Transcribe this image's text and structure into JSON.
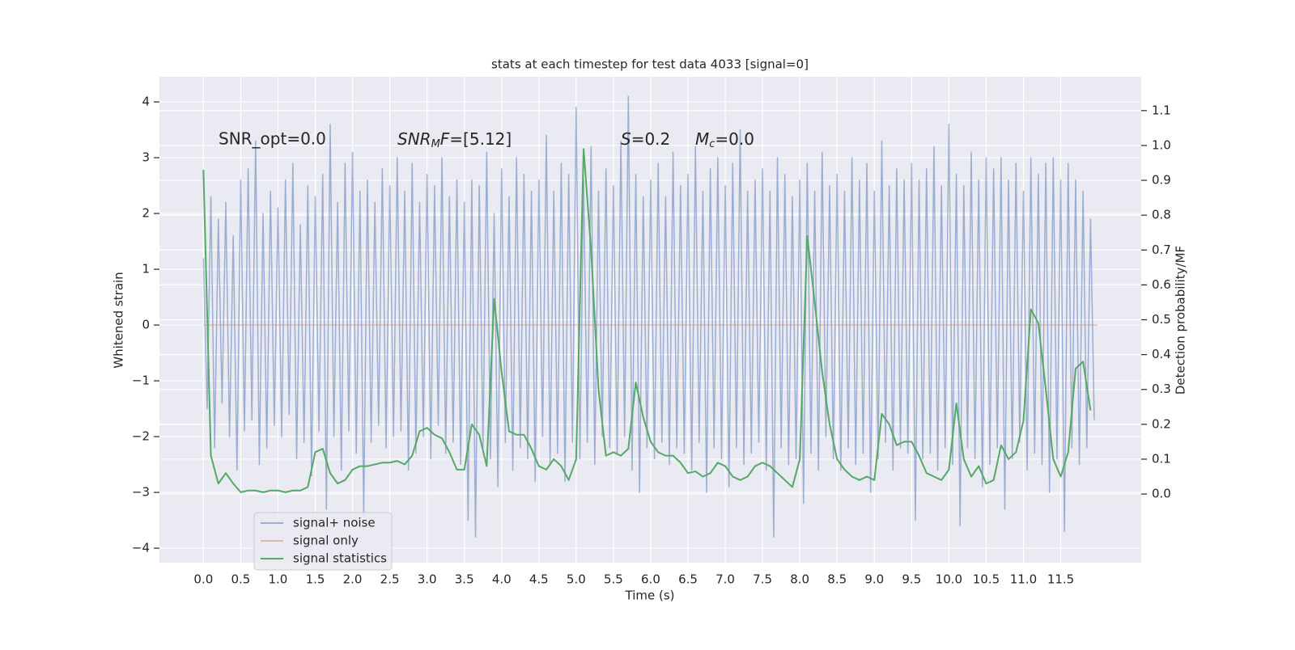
{
  "chart_data": {
    "type": "line",
    "title": "stats at each timestep for test data 4033 [signal=0]",
    "x_label": "Time (s)",
    "y_label": "Whitened strain",
    "y2_label": "Detection probability/MF",
    "xlim": [
      -0.59,
      12.58
    ],
    "ylim": [
      -4.26,
      4.45
    ],
    "y2lim": [
      -0.197,
      1.197
    ],
    "xticks": [
      {
        "value": 0,
        "label": "0.0"
      },
      0.5,
      {
        "value": 1,
        "label": "1.0"
      },
      1.5,
      {
        "value": 2,
        "label": "2.0"
      },
      2.5,
      {
        "value": 3,
        "label": "3.0"
      },
      3.5,
      {
        "value": 4,
        "label": "4.0"
      },
      4.5,
      {
        "value": 5,
        "label": "5.0"
      },
      5.5,
      {
        "value": 6,
        "label": "6.0"
      },
      6.5,
      {
        "value": 7,
        "label": "7.0"
      },
      7.5,
      {
        "value": 8,
        "label": "8.0"
      },
      8.5,
      {
        "value": 9,
        "label": "9.0"
      },
      9.5,
      {
        "value": 10,
        "label": "10.0"
      },
      10.5,
      {
        "value": 11,
        "label": "11.0"
      },
      11.5
    ],
    "yticks": [
      {
        "value": -4,
        "label": "−4"
      },
      {
        "value": -3,
        "label": "−3"
      },
      {
        "value": -2,
        "label": "−2"
      },
      {
        "value": -1,
        "label": "−1"
      },
      0,
      1,
      2,
      3,
      4
    ],
    "y2ticks": [
      {
        "value": 0,
        "label": "0.0"
      },
      0.1,
      0.2,
      0.3,
      0.4,
      0.5,
      0.6,
      0.7,
      0.8,
      0.9,
      {
        "value": 1,
        "label": "1.0"
      },
      1.1
    ],
    "grid": true,
    "legend": "lower left",
    "annotations": [
      {
        "text": "SNR_opt=0.0"
      },
      {
        "parts": [
          "SNR",
          "M",
          "F",
          "=[5.12]"
        ]
      },
      {
        "parts": [
          "S",
          "=0.2"
        ]
      },
      {
        "parts": [
          "M",
          "c",
          "=0.0"
        ]
      }
    ],
    "series": [
      {
        "name": "signal+ noise",
        "color": "#4c72b0",
        "x": [
          0,
          0.05,
          0.1,
          0.15,
          0.2,
          0.25,
          0.3,
          0.35,
          0.4,
          0.45,
          0.5,
          0.55,
          0.6,
          0.65,
          0.7,
          0.75,
          0.8,
          0.85,
          0.9,
          0.95,
          1,
          1.05,
          1.1,
          1.15,
          1.2,
          1.25,
          1.3,
          1.35,
          1.4,
          1.45,
          1.5,
          1.55,
          1.6,
          1.65,
          1.7,
          1.75,
          1.8,
          1.85,
          1.9,
          1.95,
          2,
          2.05,
          2.1,
          2.15,
          2.2,
          2.25,
          2.3,
          2.35,
          2.4,
          2.45,
          2.5,
          2.55,
          2.6,
          2.65,
          2.7,
          2.75,
          2.8,
          2.85,
          2.9,
          2.95,
          3,
          3.05,
          3.1,
          3.15,
          3.2,
          3.25,
          3.3,
          3.35,
          3.4,
          3.45,
          3.5,
          3.55,
          3.6,
          3.65,
          3.7,
          3.75,
          3.8,
          3.85,
          3.9,
          3.95,
          4,
          4.05,
          4.1,
          4.15,
          4.2,
          4.25,
          4.3,
          4.35,
          4.4,
          4.45,
          4.5,
          4.55,
          4.6,
          4.65,
          4.7,
          4.75,
          4.8,
          4.85,
          4.9,
          4.95,
          5,
          5.05,
          5.1,
          5.15,
          5.2,
          5.25,
          5.3,
          5.35,
          5.4,
          5.45,
          5.5,
          5.55,
          5.6,
          5.65,
          5.7,
          5.75,
          5.8,
          5.85,
          5.9,
          5.95,
          6,
          6.05,
          6.1,
          6.15,
          6.2,
          6.25,
          6.3,
          6.35,
          6.4,
          6.45,
          6.5,
          6.55,
          6.6,
          6.65,
          6.7,
          6.75,
          6.8,
          6.85,
          6.9,
          6.95,
          7,
          7.05,
          7.1,
          7.15,
          7.2,
          7.25,
          7.3,
          7.35,
          7.4,
          7.45,
          7.5,
          7.55,
          7.6,
          7.65,
          7.7,
          7.75,
          7.8,
          7.85,
          7.9,
          7.95,
          8,
          8.05,
          8.1,
          8.15,
          8.2,
          8.25,
          8.3,
          8.35,
          8.4,
          8.45,
          8.5,
          8.55,
          8.6,
          8.65,
          8.7,
          8.75,
          8.8,
          8.85,
          8.9,
          8.95,
          9,
          9.05,
          9.1,
          9.15,
          9.2,
          9.25,
          9.3,
          9.35,
          9.4,
          9.45,
          9.5,
          9.55,
          9.6,
          9.65,
          9.7,
          9.75,
          9.8,
          9.85,
          9.9,
          9.95,
          10,
          10.05,
          10.1,
          10.15,
          10.2,
          10.25,
          10.3,
          10.35,
          10.4,
          10.45,
          10.5,
          10.55,
          10.6,
          10.65,
          10.7,
          10.75,
          10.8,
          10.85,
          10.9,
          10.95,
          11,
          11.05,
          11.1,
          11.15,
          11.2,
          11.25,
          11.3,
          11.35,
          11.4,
          11.45,
          11.5,
          11.55,
          11.6,
          11.65,
          11.7,
          11.75,
          11.8,
          11.85,
          11.9,
          11.95
        ],
        "values": [
          1.2,
          -1.5,
          2.3,
          -2.2,
          1.9,
          -1.4,
          2.2,
          -2.0,
          1.6,
          -2.6,
          2.6,
          -1.9,
          2.8,
          -1.7,
          3.3,
          -2.5,
          2.0,
          -2.2,
          2.4,
          -1.8,
          2.1,
          -2.0,
          2.6,
          -1.6,
          2.9,
          -2.4,
          1.8,
          -2.1,
          2.5,
          -2.7,
          2.3,
          -1.9,
          2.7,
          -3.3,
          3.6,
          -2.0,
          2.2,
          -2.6,
          2.9,
          -1.9,
          3.1,
          -2.3,
          2.4,
          -3.4,
          2.6,
          -2.1,
          2.2,
          -1.8,
          2.8,
          -2.2,
          2.5,
          -2.0,
          3.0,
          -1.9,
          2.4,
          -2.6,
          2.9,
          -2.3,
          2.2,
          -2.0,
          2.7,
          -2.4,
          2.5,
          -1.8,
          3.0,
          -2.3,
          2.3,
          -2.1,
          2.6,
          -2.5,
          2.2,
          -3.5,
          2.6,
          -3.8,
          2.5,
          -2.2,
          3.1,
          -2.4,
          2.0,
          -2.9,
          2.8,
          -2.1,
          2.3,
          -2.6,
          3.0,
          -2.2,
          2.7,
          -2.4,
          2.4,
          -2.8,
          2.6,
          -2.0,
          3.4,
          -2.5,
          2.4,
          -2.3,
          2.9,
          -2.8,
          2.7,
          -2.1,
          3.9,
          -2.4,
          2.6,
          -2.1,
          3.2,
          -2.5,
          2.4,
          -2.0,
          2.8,
          -2.2,
          2.5,
          -2.3,
          3.3,
          -2.0,
          4.1,
          -2.6,
          2.7,
          -3.0,
          2.3,
          -2.2,
          2.6,
          -2.4,
          2.9,
          -2.1,
          2.3,
          -2.5,
          3.1,
          -2.2,
          2.5,
          -2.3,
          2.7,
          -2.6,
          3.2,
          -2.1,
          2.4,
          -3.0,
          2.8,
          -2.2,
          3.0,
          -2.4,
          2.5,
          -2.9,
          2.9,
          -2.2,
          3.5,
          -2.5,
          2.4,
          -2.3,
          2.6,
          -2.1,
          2.8,
          -2.6,
          2.4,
          -3.8,
          3.0,
          -2.2,
          2.7,
          -2.5,
          2.3,
          -2.4,
          2.6,
          -3.2,
          2.9,
          -2.3,
          2.4,
          -2.6,
          3.1,
          -2.0,
          2.5,
          -2.4,
          2.7,
          -2.6,
          2.4,
          -2.2,
          3.0,
          -2.5,
          2.6,
          -2.3,
          2.9,
          -3.0,
          2.4,
          -2.4,
          3.3,
          -2.1,
          2.5,
          -2.6,
          2.8,
          -2.2,
          2.6,
          -2.3,
          2.9,
          -3.5,
          2.6,
          -2.4,
          2.8,
          -2.3,
          3.2,
          -2.6,
          2.5,
          -2.2,
          3.6,
          -2.5,
          2.7,
          -3.6,
          2.5,
          -2.2,
          3.1,
          -2.4,
          2.6,
          -2.9,
          3.0,
          -2.5,
          2.8,
          -2.2,
          3.0,
          -3.3,
          2.6,
          -2.4,
          2.9,
          -2.1,
          2.4,
          -2.6,
          3.0,
          -2.3,
          2.7,
          -2.5,
          2.9,
          -3.0,
          3.0,
          -2.4,
          2.6,
          -3.7,
          2.9,
          -2.2,
          2.6,
          -2.5,
          2.4,
          -2.2,
          1.9,
          -1.7
        ]
      },
      {
        "name": "signal only",
        "color": "#dd8452",
        "x": [
          0,
          11.99
        ],
        "values": [
          0,
          0
        ]
      },
      {
        "name": "signal statistics",
        "color": "#55a868",
        "axis": "y2",
        "x": [
          0,
          0.1,
          0.2,
          0.3,
          0.4,
          0.5,
          0.6,
          0.7,
          0.8,
          0.9,
          1,
          1.1,
          1.2,
          1.3,
          1.4,
          1.5,
          1.6,
          1.7,
          1.8,
          1.9,
          2,
          2.1,
          2.2,
          2.3,
          2.4,
          2.5,
          2.6,
          2.7,
          2.8,
          2.9,
          3,
          3.1,
          3.2,
          3.3,
          3.4,
          3.5,
          3.6,
          3.7,
          3.8,
          3.9,
          4,
          4.1,
          4.2,
          4.3,
          4.4,
          4.5,
          4.6,
          4.7,
          4.8,
          4.9,
          5,
          5.1,
          5.2,
          5.3,
          5.4,
          5.5,
          5.6,
          5.7,
          5.8,
          5.9,
          6,
          6.1,
          6.2,
          6.3,
          6.4,
          6.5,
          6.6,
          6.7,
          6.8,
          6.9,
          7,
          7.1,
          7.2,
          7.3,
          7.4,
          7.5,
          7.6,
          7.7,
          7.8,
          7.9,
          8,
          8.1,
          8.2,
          8.3,
          8.4,
          8.5,
          8.6,
          8.7,
          8.8,
          8.9,
          9,
          9.1,
          9.2,
          9.3,
          9.4,
          9.5,
          9.6,
          9.7,
          9.8,
          9.9,
          10,
          10.1,
          10.2,
          10.3,
          10.4,
          10.5,
          10.6,
          10.7,
          10.8,
          10.9,
          11,
          11.1,
          11.2,
          11.3,
          11.4,
          11.5,
          11.6,
          11.7,
          11.8,
          11.9
        ],
        "values": [
          0.93,
          0.11,
          0.03,
          0.06,
          0.03,
          0.005,
          0.01,
          0.01,
          0.005,
          0.01,
          0.01,
          0.005,
          0.01,
          0.01,
          0.02,
          0.12,
          0.13,
          0.06,
          0.03,
          0.04,
          0.07,
          0.08,
          0.08,
          0.085,
          0.09,
          0.09,
          0.095,
          0.085,
          0.11,
          0.18,
          0.19,
          0.17,
          0.16,
          0.12,
          0.07,
          0.07,
          0.2,
          0.17,
          0.08,
          0.56,
          0.35,
          0.18,
          0.17,
          0.17,
          0.13,
          0.08,
          0.07,
          0.1,
          0.08,
          0.04,
          0.1,
          0.99,
          0.7,
          0.3,
          0.11,
          0.12,
          0.11,
          0.13,
          0.32,
          0.22,
          0.15,
          0.12,
          0.11,
          0.11,
          0.09,
          0.06,
          0.065,
          0.05,
          0.06,
          0.09,
          0.08,
          0.05,
          0.04,
          0.05,
          0.08,
          0.09,
          0.08,
          0.06,
          0.04,
          0.02,
          0.1,
          0.74,
          0.55,
          0.35,
          0.2,
          0.1,
          0.07,
          0.05,
          0.04,
          0.05,
          0.04,
          0.23,
          0.2,
          0.14,
          0.15,
          0.15,
          0.11,
          0.06,
          0.05,
          0.04,
          0.07,
          0.26,
          0.1,
          0.05,
          0.08,
          0.03,
          0.04,
          0.14,
          0.1,
          0.12,
          0.21,
          0.53,
          0.49,
          0.3,
          0.1,
          0.05,
          0.12,
          0.36,
          0.38,
          0.24
        ]
      }
    ]
  }
}
